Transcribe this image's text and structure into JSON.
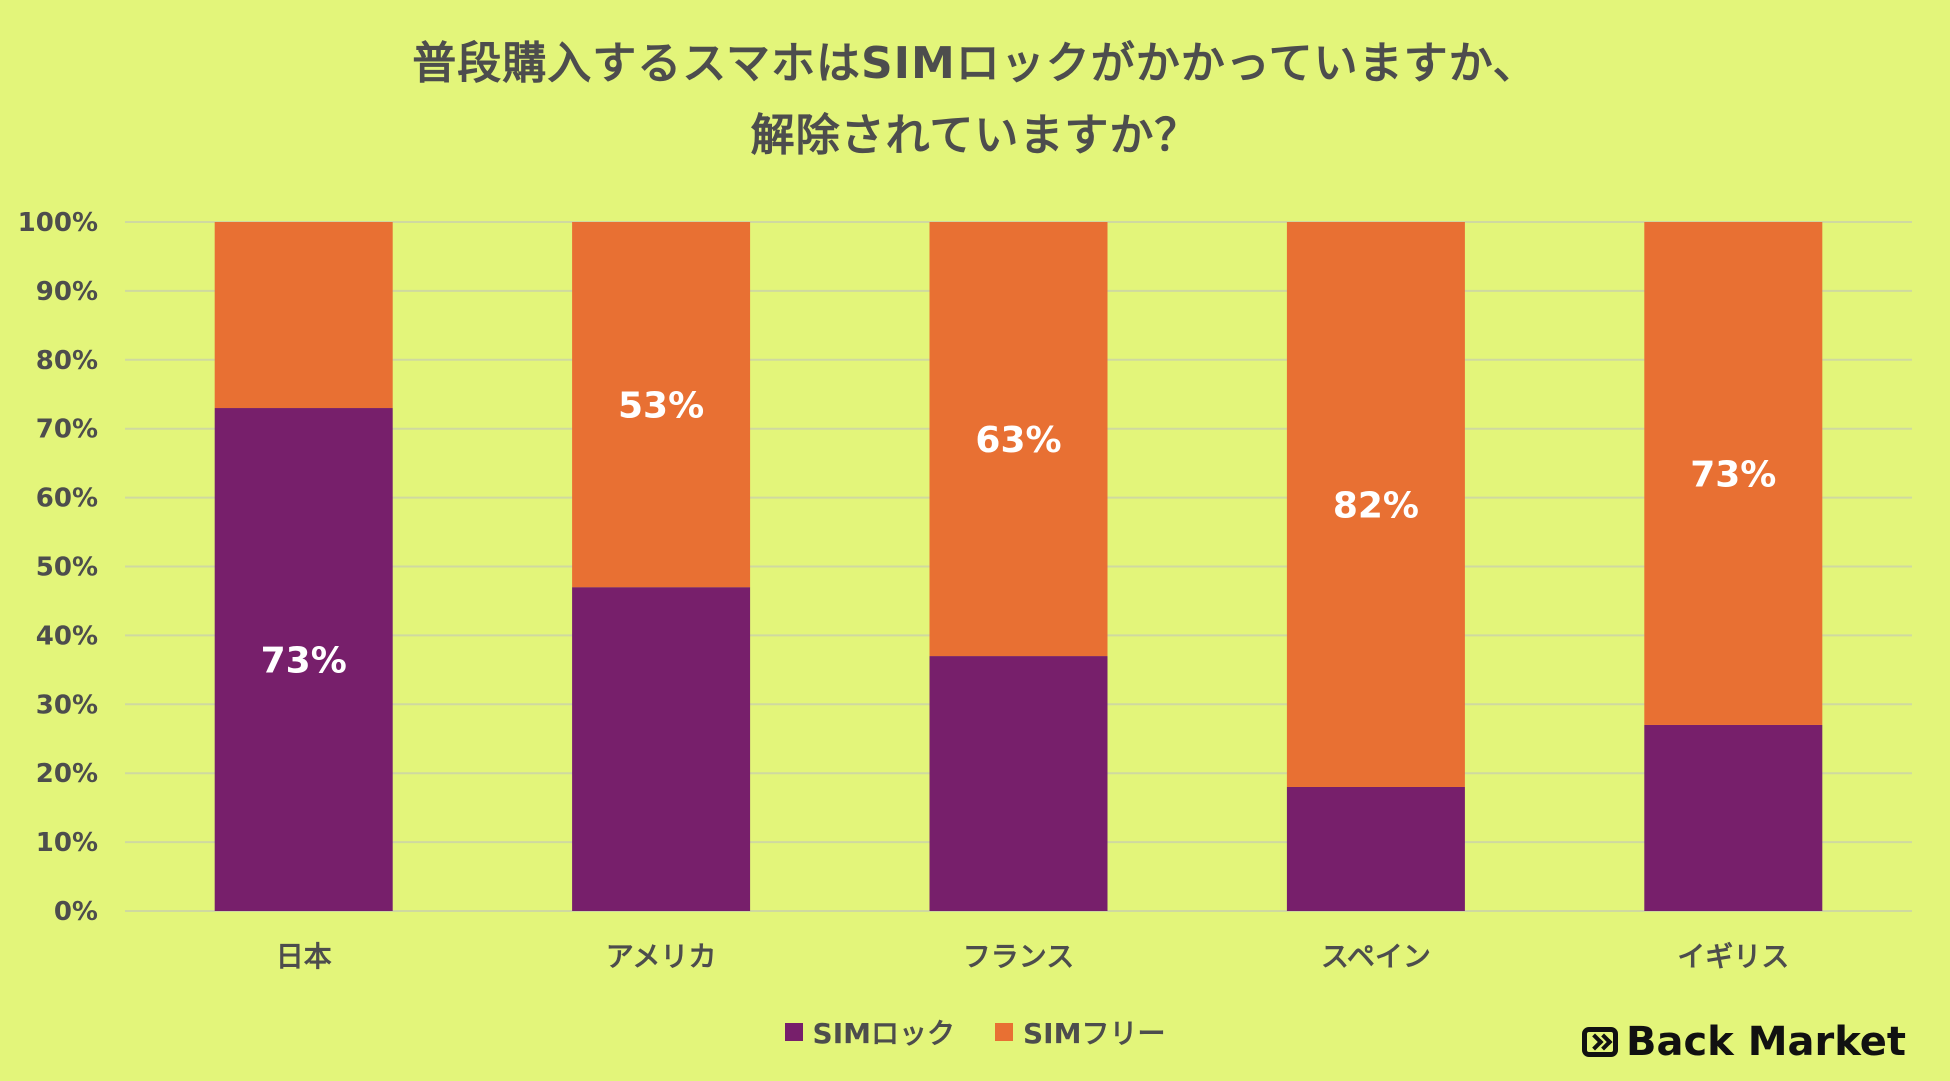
{
  "chart_data": {
    "type": "bar",
    "stacked": true,
    "title_lines": [
      "普段購入するスマホはSIMロックがかかっていますか、",
      "解除されていますか？"
    ],
    "categories": [
      "日本",
      "アメリカ",
      "フランス",
      "スペイン",
      "イギリス"
    ],
    "series": [
      {
        "name": "SIMロック",
        "values": [
          73,
          47,
          37,
          18,
          27
        ],
        "color": "#771f6b"
      },
      {
        "name": "SIMフリー",
        "values": [
          27,
          53,
          63,
          82,
          73
        ],
        "color": "#e87033"
      }
    ],
    "data_labels": [
      {
        "category": "日本",
        "series": "SIMロック",
        "text": "73%"
      },
      {
        "category": "アメリカ",
        "series": "SIMフリー",
        "text": "53%"
      },
      {
        "category": "フランス",
        "series": "SIMフリー",
        "text": "63%"
      },
      {
        "category": "スペイン",
        "series": "SIMフリー",
        "text": "82%"
      },
      {
        "category": "イギリス",
        "series": "SIMフリー",
        "text": "73%"
      }
    ],
    "ylim": [
      0,
      100
    ],
    "yticks": [
      "0%",
      "10%",
      "20%",
      "30%",
      "40%",
      "50%",
      "60%",
      "70%",
      "80%",
      "90%",
      "100%"
    ],
    "grid": true,
    "legend_position": "bottom"
  },
  "legend": [
    {
      "label": "SIMロック",
      "color": "#771f6b"
    },
    {
      "label": "SIMフリー",
      "color": "#e87033"
    }
  ],
  "brand": {
    "name": "Back Market",
    "icon": "back-market-logo-icon"
  }
}
